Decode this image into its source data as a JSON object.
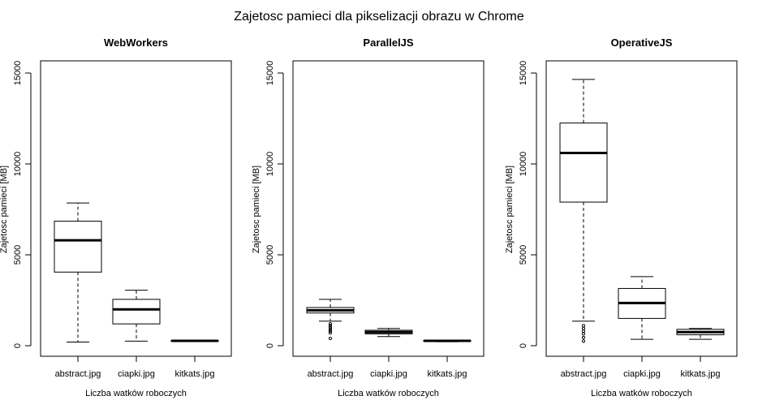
{
  "title": "Zajetosc pamieci dla pikselizacji obrazu w Chrome",
  "chart_data": [
    {
      "type": "boxplot",
      "title": "WebWorkers",
      "xlabel": "Liczba watków roboczych",
      "ylabel": "Zajetosc pamieci [MB]",
      "ylim": [
        0,
        15000
      ],
      "yticks": [
        0,
        5000,
        10000,
        15000
      ],
      "categories": [
        "abstract.jpg",
        "ciapki.jpg",
        "kitkats.jpg"
      ],
      "boxes": [
        {
          "whisker_low": 200,
          "q1": 4050,
          "median": 5800,
          "q3": 6850,
          "whisker_high": 7850,
          "outliers": []
        },
        {
          "whisker_low": 250,
          "q1": 1200,
          "median": 2000,
          "q3": 2550,
          "whisker_high": 3050,
          "outliers": []
        },
        {
          "whisker_low": 230,
          "q1": 250,
          "median": 270,
          "q3": 290,
          "whisker_high": 310,
          "outliers": []
        }
      ]
    },
    {
      "type": "boxplot",
      "title": "ParallelJS",
      "xlabel": "Liczba watków roboczych",
      "ylabel": "Zajetosc pamieci [MB]",
      "ylim": [
        0,
        15000
      ],
      "yticks": [
        0,
        5000,
        10000,
        15000
      ],
      "categories": [
        "abstract.jpg",
        "ciapki.jpg",
        "kitkats.jpg"
      ],
      "boxes": [
        {
          "whisker_low": 1350,
          "q1": 1800,
          "median": 1950,
          "q3": 2100,
          "whisker_high": 2550,
          "outliers": [
            1200,
            1100,
            1000,
            900,
            800,
            700,
            400
          ]
        },
        {
          "whisker_low": 500,
          "q1": 650,
          "median": 750,
          "q3": 850,
          "whisker_high": 950,
          "outliers": []
        },
        {
          "whisker_low": 220,
          "q1": 250,
          "median": 270,
          "q3": 290,
          "whisker_high": 310,
          "outliers": []
        }
      ]
    },
    {
      "type": "boxplot",
      "title": "OperativeJS",
      "xlabel": "Liczba watków roboczych",
      "ylabel": "Zajetosc pamieci [MB]",
      "ylim": [
        0,
        15000
      ],
      "yticks": [
        0,
        5000,
        10000,
        15000
      ],
      "categories": [
        "abstract.jpg",
        "ciapki.jpg",
        "kitkats.jpg"
      ],
      "boxes": [
        {
          "whisker_low": 1350,
          "q1": 7900,
          "median": 10600,
          "q3": 12250,
          "whisker_high": 14650,
          "outliers": [
            1100,
            950,
            800,
            650,
            450,
            250
          ]
        },
        {
          "whisker_low": 350,
          "q1": 1500,
          "median": 2350,
          "q3": 3150,
          "whisker_high": 3800,
          "outliers": []
        },
        {
          "whisker_low": 350,
          "q1": 600,
          "median": 750,
          "q3": 900,
          "whisker_high": 950,
          "outliers": []
        }
      ]
    }
  ]
}
